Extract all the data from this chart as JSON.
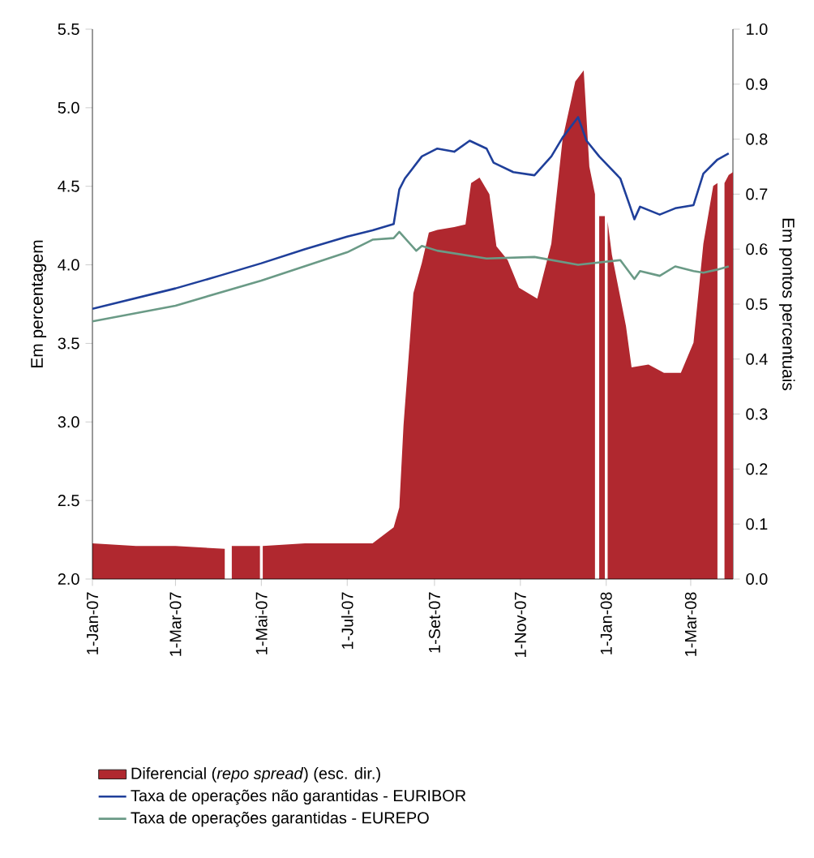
{
  "chart_data": {
    "type": "line",
    "ylabel": "Em percentagem",
    "y2label": "Em pontos percentuais",
    "xlim": [
      "2007-01-01",
      "2008-03-31"
    ],
    "xticks": [
      {
        "value": "2007-01-01",
        "label": "1-Jan-07"
      },
      {
        "value": "2007-03-01",
        "label": "1-Mar-07"
      },
      {
        "value": "2007-05-01",
        "label": "1-Mai-07"
      },
      {
        "value": "2007-07-01",
        "label": "1-Jul-07"
      },
      {
        "value": "2007-09-01",
        "label": "1-Set-07"
      },
      {
        "value": "2007-11-01",
        "label": "1-Nov-07"
      },
      {
        "value": "2008-01-01",
        "label": "1-Jan-08"
      },
      {
        "value": "2008-03-01",
        "label": "1-Mar-08"
      }
    ],
    "ylim": [
      2.0,
      5.5
    ],
    "yticks": [
      {
        "value": 2.0,
        "label": "2.0"
      },
      {
        "value": 2.5,
        "label": "2.5"
      },
      {
        "value": 3.0,
        "label": "3.0"
      },
      {
        "value": 3.5,
        "label": "3.5"
      },
      {
        "value": 4.0,
        "label": "4.0"
      },
      {
        "value": 4.5,
        "label": "4.5"
      },
      {
        "value": 5.0,
        "label": "5.0"
      },
      {
        "value": 5.5,
        "label": "5.5"
      }
    ],
    "y2lim": [
      0.0,
      1.0
    ],
    "y2ticks": [
      {
        "value": 0.0,
        "label": "0.0"
      },
      {
        "value": 0.1,
        "label": "0.1"
      },
      {
        "value": 0.2,
        "label": "0.2"
      },
      {
        "value": 0.3,
        "label": "0.3"
      },
      {
        "value": 0.4,
        "label": "0.4"
      },
      {
        "value": 0.5,
        "label": "0.5"
      },
      {
        "value": 0.6,
        "label": "0.6"
      },
      {
        "value": 0.7,
        "label": "0.7"
      },
      {
        "value": 0.8,
        "label": "0.8"
      },
      {
        "value": 0.9,
        "label": "0.9"
      },
      {
        "value": 1.0,
        "label": "1.0"
      }
    ],
    "legend": "bottom",
    "series": [
      {
        "name": "Diferencial (*repo spread*) (esc. dir.)",
        "type": "area",
        "axis": "y2",
        "color": "#b0282f",
        "x": [
          "2007-01-01",
          "2007-02-01",
          "2007-03-01",
          "2007-04-05",
          "2007-04-06",
          "2007-04-10",
          "2007-04-30",
          "2007-05-01",
          "2007-05-02",
          "2007-06-01",
          "2007-07-01",
          "2007-07-19",
          "2007-08-03",
          "2007-08-07",
          "2007-08-10",
          "2007-08-17",
          "2007-08-23",
          "2007-08-28",
          "2007-09-03",
          "2007-09-15",
          "2007-09-23",
          "2007-09-27",
          "2007-10-03",
          "2007-10-10",
          "2007-10-15",
          "2007-10-23",
          "2007-10-31",
          "2007-11-13",
          "2007-11-23",
          "2007-12-01",
          "2007-12-10",
          "2007-12-16",
          "2007-12-20",
          "2007-12-24",
          "2007-12-25",
          "2007-12-27",
          "2007-12-31",
          "2008-01-01",
          "2008-01-02",
          "2008-01-05",
          "2008-01-15",
          "2008-01-19",
          "2008-01-31",
          "2008-02-11",
          "2008-02-23",
          "2008-03-03",
          "2008-03-10",
          "2008-03-17",
          "2008-03-20",
          "2008-03-21",
          "2008-03-25",
          "2008-03-28",
          "2008-03-31"
        ],
        "values": [
          0.065,
          0.06,
          0.06,
          0.055,
          null,
          0.06,
          0.06,
          null,
          0.06,
          0.065,
          0.065,
          0.065,
          0.094,
          0.13,
          0.28,
          0.52,
          0.575,
          0.63,
          0.635,
          0.64,
          0.645,
          0.72,
          0.73,
          0.7,
          0.605,
          0.58,
          0.53,
          0.51,
          0.61,
          0.8,
          0.905,
          0.925,
          0.75,
          0.7,
          null,
          0.66,
          0.66,
          null,
          0.65,
          0.59,
          0.46,
          0.385,
          0.39,
          0.375,
          0.375,
          0.43,
          0.61,
          0.715,
          0.72,
          null,
          0.72,
          0.735,
          0.74
        ]
      },
      {
        "name": "Taxa de operações não garantidas - EURIBOR",
        "color": "#1f3f9a",
        "x": [
          "2007-01-01",
          "2007-03-01",
          "2007-04-01",
          "2007-05-01",
          "2007-06-01",
          "2007-07-01",
          "2007-07-19",
          "2007-08-03",
          "2007-08-07",
          "2007-08-11",
          "2007-08-23",
          "2007-09-03",
          "2007-09-15",
          "2007-09-26",
          "2007-10-08",
          "2007-10-13",
          "2007-10-27",
          "2007-11-11",
          "2007-11-23",
          "2007-12-01",
          "2007-12-12",
          "2007-12-18",
          "2007-12-27",
          "2008-01-11",
          "2008-01-18",
          "2008-01-21",
          "2008-01-25",
          "2008-02-08",
          "2008-02-19",
          "2008-03-03",
          "2008-03-10",
          "2008-03-20",
          "2008-03-28"
        ],
        "values": [
          3.72,
          3.85,
          3.93,
          4.01,
          4.1,
          4.18,
          4.22,
          4.26,
          4.48,
          4.55,
          4.69,
          4.74,
          4.72,
          4.79,
          4.74,
          4.65,
          4.59,
          4.57,
          4.69,
          4.81,
          4.94,
          4.79,
          4.69,
          4.55,
          4.37,
          4.29,
          4.37,
          4.32,
          4.36,
          4.38,
          4.58,
          4.67,
          4.71
        ]
      },
      {
        "name": "Taxa de operações garantidas - EUREPO",
        "color": "#6a9a86",
        "x": [
          "2007-01-01",
          "2007-03-01",
          "2007-05-01",
          "2007-07-01",
          "2007-07-19",
          "2007-08-03",
          "2007-08-07",
          "2007-08-19",
          "2007-08-23",
          "2007-09-03",
          "2007-10-08",
          "2007-11-11",
          "2007-12-12",
          "2008-01-11",
          "2008-01-21",
          "2008-01-25",
          "2008-02-08",
          "2008-02-19",
          "2008-03-03",
          "2008-03-10",
          "2008-03-20",
          "2008-03-28"
        ],
        "values": [
          3.64,
          3.74,
          3.9,
          4.08,
          4.16,
          4.17,
          4.21,
          4.09,
          4.12,
          4.09,
          4.04,
          4.05,
          4.0,
          4.03,
          3.91,
          3.96,
          3.93,
          3.99,
          3.96,
          3.95,
          3.97,
          3.99
        ]
      }
    ]
  }
}
